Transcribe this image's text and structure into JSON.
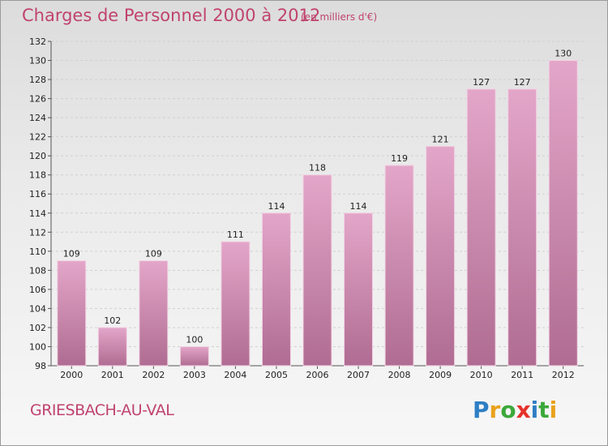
{
  "header": {
    "title": "Charges de Personnel 2000 à 2012",
    "subtitle": "(en milliers d'€)"
  },
  "footer": {
    "place": "GRIESBACH-AU-VAL",
    "logo_text": "Proxiti"
  },
  "colors": {
    "accent": "#c0436f",
    "bar_top": "#e3a6c9",
    "bar_bottom": "#b06c92",
    "logo_letters": [
      "#2e7fc4",
      "#e9a21c",
      "#3ca83a",
      "#e6322c",
      "#2e7fc4",
      "#3ca83a",
      "#e9a21c"
    ]
  },
  "chart_data": {
    "type": "bar",
    "categories": [
      "2000",
      "2001",
      "2002",
      "2003",
      "2004",
      "2005",
      "2006",
      "2007",
      "2008",
      "2009",
      "2010",
      "2011",
      "2012"
    ],
    "values": [
      109,
      102,
      109,
      100,
      111,
      114,
      118,
      114,
      119,
      121,
      127,
      127,
      130
    ],
    "ylim": [
      98,
      132
    ],
    "yticks": [
      98,
      100,
      102,
      104,
      106,
      108,
      110,
      112,
      114,
      116,
      118,
      120,
      122,
      124,
      126,
      128,
      130,
      132
    ],
    "grid": true,
    "data_labels": true
  }
}
